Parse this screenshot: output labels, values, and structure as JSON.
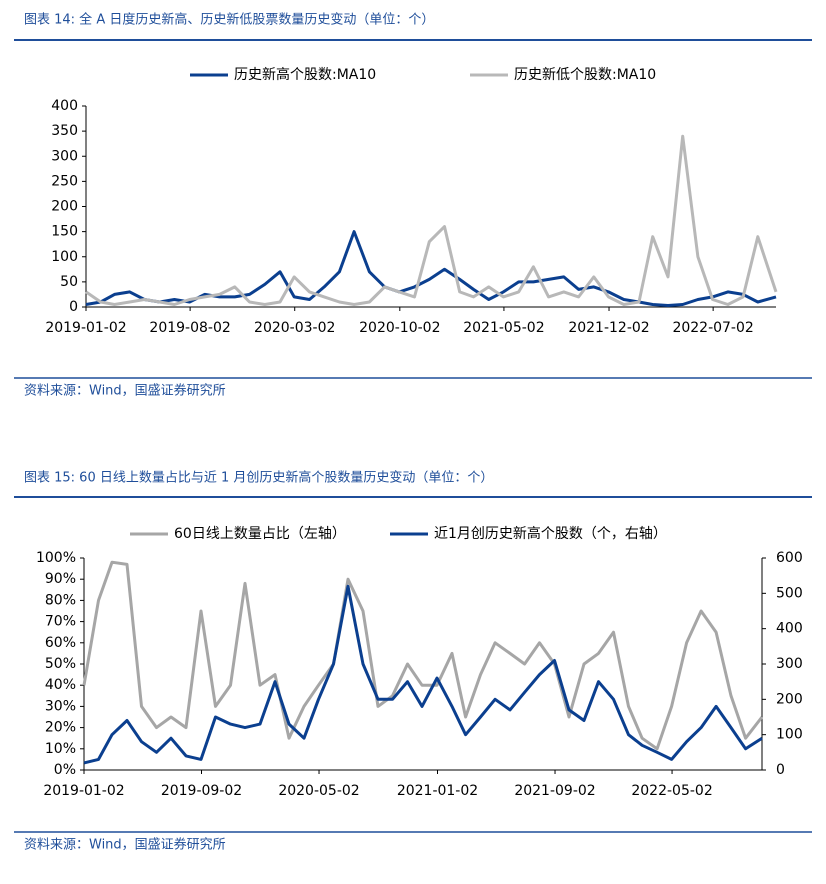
{
  "titles": [
    "图表 14:  全 A 日度历史新高、历史新低股票数量历史变动（单位：个）",
    "图表 15:  60 日线上数量占比与近 1 月创历史新高个股数量历史变动（单位：个）"
  ],
  "sources": [
    "资料来源：Wind，国盛证券研究所",
    "资料来源：Wind，国盛证券研究所"
  ],
  "chart_data": [
    {
      "type": "line",
      "x": [
        "2019-01-02",
        "2019-02-01",
        "2019-03-01",
        "2019-04-01",
        "2019-05-01",
        "2019-06-01",
        "2019-07-01",
        "2019-08-01",
        "2019-09-01",
        "2019-10-01",
        "2019-11-01",
        "2019-12-01",
        "2020-01-01",
        "2020-02-01",
        "2020-03-01",
        "2020-04-01",
        "2020-05-01",
        "2020-06-01",
        "2020-07-01",
        "2020-08-01",
        "2020-09-01",
        "2020-10-01",
        "2020-11-01",
        "2020-12-01",
        "2021-01-01",
        "2021-02-01",
        "2021-03-01",
        "2021-04-01",
        "2021-05-01",
        "2021-06-01",
        "2021-07-01",
        "2021-08-01",
        "2021-09-01",
        "2021-10-01",
        "2021-11-01",
        "2021-12-01",
        "2022-01-01",
        "2022-02-01",
        "2022-03-01",
        "2022-04-01",
        "2022-05-01",
        "2022-06-01",
        "2022-07-01",
        "2022-08-01",
        "2022-09-01",
        "2022-10-01",
        "2022-11-07"
      ],
      "xticks": [
        "2019-01-02",
        "2019-08-02",
        "2020-03-02",
        "2020-10-02",
        "2021-05-02",
        "2021-12-02",
        "2022-07-02"
      ],
      "ylim": [
        0,
        400
      ],
      "yticks": [
        0,
        50,
        100,
        150,
        200,
        250,
        300,
        350,
        400
      ],
      "series": [
        {
          "name": "历史新高个股数:MA10",
          "color": "#0b3f8f",
          "values": [
            5,
            10,
            25,
            30,
            15,
            10,
            15,
            10,
            25,
            20,
            20,
            25,
            45,
            70,
            20,
            15,
            40,
            70,
            150,
            70,
            40,
            30,
            40,
            55,
            75,
            55,
            35,
            15,
            30,
            50,
            50,
            55,
            60,
            35,
            40,
            30,
            15,
            10,
            5,
            3,
            5,
            15,
            20,
            30,
            25,
            10,
            20
          ]
        },
        {
          "name": "历史新低个股数:MA10",
          "color": "#b8b8b8",
          "values": [
            30,
            10,
            5,
            10,
            15,
            10,
            5,
            15,
            20,
            25,
            40,
            10,
            5,
            10,
            60,
            30,
            20,
            10,
            5,
            10,
            40,
            30,
            20,
            130,
            160,
            30,
            20,
            40,
            20,
            30,
            80,
            20,
            30,
            20,
            60,
            20,
            5,
            10,
            140,
            60,
            340,
            100,
            15,
            5,
            20,
            140,
            30
          ]
        }
      ]
    },
    {
      "type": "line",
      "x": [
        "2019-01-02",
        "2019-02-01",
        "2019-03-01",
        "2019-04-01",
        "2019-05-01",
        "2019-06-01",
        "2019-07-01",
        "2019-08-01",
        "2019-09-01",
        "2019-10-01",
        "2019-11-01",
        "2019-12-01",
        "2020-01-01",
        "2020-02-01",
        "2020-03-01",
        "2020-04-01",
        "2020-05-01",
        "2020-06-01",
        "2020-07-01",
        "2020-08-01",
        "2020-09-01",
        "2020-10-01",
        "2020-11-01",
        "2020-12-01",
        "2021-01-01",
        "2021-02-01",
        "2021-03-01",
        "2021-04-01",
        "2021-05-01",
        "2021-06-01",
        "2021-07-01",
        "2021-08-01",
        "2021-09-01",
        "2021-10-01",
        "2021-11-01",
        "2021-12-01",
        "2022-01-01",
        "2022-02-01",
        "2022-03-01",
        "2022-04-01",
        "2022-05-01",
        "2022-06-01",
        "2022-07-01",
        "2022-08-01",
        "2022-09-01",
        "2022-10-01",
        "2022-11-04"
      ],
      "xticks": [
        "2019-01-02",
        "2019-09-02",
        "2020-05-02",
        "2021-01-02",
        "2021-09-02",
        "2022-05-02"
      ],
      "ylim": [
        0,
        100
      ],
      "yticks": [
        {
          "value": 0,
          "label": "0%"
        },
        {
          "value": 10,
          "label": "10%"
        },
        {
          "value": 20,
          "label": "20%"
        },
        {
          "value": 30,
          "label": "30%"
        },
        {
          "value": 40,
          "label": "40%"
        },
        {
          "value": 50,
          "label": "50%"
        },
        {
          "value": 60,
          "label": "60%"
        },
        {
          "value": 70,
          "label": "70%"
        },
        {
          "value": 80,
          "label": "80%"
        },
        {
          "value": 90,
          "label": "90%"
        },
        {
          "value": 100,
          "label": "100%"
        }
      ],
      "y2lim": [
        0,
        600
      ],
      "y2ticks": [
        0,
        100,
        200,
        300,
        400,
        500,
        600
      ],
      "series": [
        {
          "name": "60日线上数量占比（左轴）",
          "color": "#a6a6a6",
          "values": [
            40,
            80,
            98,
            97,
            30,
            20,
            25,
            20,
            75,
            30,
            40,
            88,
            40,
            45,
            15,
            30,
            40,
            50,
            90,
            75,
            30,
            35,
            50,
            40,
            40,
            55,
            25,
            45,
            60,
            55,
            50,
            60,
            50,
            25,
            50,
            55,
            65,
            30,
            15,
            10,
            30,
            60,
            75,
            65,
            35,
            15,
            25
          ]
        },
        {
          "name": "近1月创历史新高个股数（个，右轴）",
          "color": "#0b3f8f",
          "axis": "y2",
          "values": [
            20,
            30,
            100,
            140,
            80,
            50,
            90,
            40,
            30,
            150,
            130,
            120,
            130,
            250,
            130,
            90,
            200,
            300,
            520,
            300,
            200,
            200,
            250,
            180,
            260,
            180,
            100,
            150,
            200,
            170,
            220,
            270,
            310,
            170,
            140,
            250,
            200,
            100,
            70,
            50,
            30,
            80,
            120,
            180,
            120,
            60,
            90
          ]
        }
      ]
    }
  ]
}
